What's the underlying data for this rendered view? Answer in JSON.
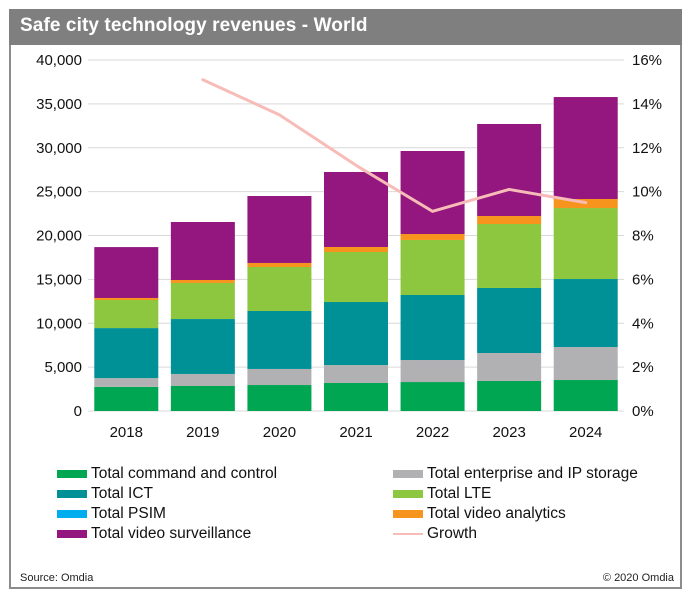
{
  "header": {
    "title": "Safe city technology revenues - World"
  },
  "footer": {
    "source": "Source: Omdia",
    "copyright": "© 2020 Omdia"
  },
  "chart_data": {
    "type": "bar",
    "stacked": true,
    "title": "Safe city technology revenues - World",
    "xlabel": "",
    "ylabel": "",
    "categories": [
      "2018",
      "2019",
      "2020",
      "2021",
      "2022",
      "2023",
      "2024"
    ],
    "ylim": [
      0,
      40000
    ],
    "yticks": [
      0,
      5000,
      10000,
      15000,
      20000,
      25000,
      30000,
      35000,
      40000
    ],
    "ytick_labels": [
      "0",
      "5,000",
      "10,000",
      "15,000",
      "20,000",
      "25,000",
      "30,000",
      "35,000",
      "40,000"
    ],
    "y2lim": [
      0,
      16
    ],
    "y2ticks": [
      0,
      2,
      4,
      6,
      8,
      10,
      12,
      14,
      16
    ],
    "y2tick_labels": [
      "0%",
      "2%",
      "4%",
      "6%",
      "8%",
      "10%",
      "12%",
      "14%",
      "16%"
    ],
    "grid": true,
    "legend_position": "bottom",
    "series": [
      {
        "name": "Total command and control",
        "color": "#00a651",
        "values": [
          2750,
          2850,
          2960,
          3190,
          3300,
          3420,
          3530
        ]
      },
      {
        "name": "Total enterprise and IP storage",
        "color": "#b1b1b3",
        "values": [
          1000,
          1370,
          1830,
          2050,
          2510,
          3190,
          3760
        ]
      },
      {
        "name": "Total ICT",
        "color": "#009196",
        "values": [
          5700,
          6260,
          6610,
          7180,
          7410,
          7410,
          7750
        ]
      },
      {
        "name": "Total LTE",
        "color": "#8dc63f",
        "values": [
          3200,
          4110,
          5010,
          5700,
          6270,
          7290,
          8090
        ]
      },
      {
        "name": "Total PSIM",
        "color": "#00aeef",
        "values": [
          0,
          0,
          0,
          0,
          0,
          0,
          0
        ]
      },
      {
        "name": "Total video analytics",
        "color": "#f7941d",
        "values": [
          230,
          340,
          460,
          570,
          680,
          910,
          1030
        ]
      },
      {
        "name": "Total video surveillance",
        "color": "#93177e",
        "values": [
          5800,
          6610,
          7630,
          8550,
          9460,
          10490,
          11620
        ]
      }
    ],
    "line_series": {
      "name": "Growth",
      "color": "#f7bcb8",
      "axis": "secondary",
      "unit": "%",
      "values": [
        null,
        15.1,
        13.5,
        11.2,
        9.1,
        10.1,
        9.5
      ]
    },
    "legend": [
      {
        "name": "Total command and control",
        "color": "#00a651",
        "kind": "bar"
      },
      {
        "name": "Total enterprise and IP storage",
        "color": "#b1b1b3",
        "kind": "bar"
      },
      {
        "name": "Total ICT",
        "color": "#009196",
        "kind": "bar"
      },
      {
        "name": "Total LTE",
        "color": "#8dc63f",
        "kind": "bar"
      },
      {
        "name": "Total PSIM",
        "color": "#00aeef",
        "kind": "bar"
      },
      {
        "name": "Total video analytics",
        "color": "#f7941d",
        "kind": "bar"
      },
      {
        "name": "Total video surveillance",
        "color": "#93177e",
        "kind": "bar"
      },
      {
        "name": "Growth",
        "color": "#f7bcb8",
        "kind": "line"
      }
    ]
  }
}
